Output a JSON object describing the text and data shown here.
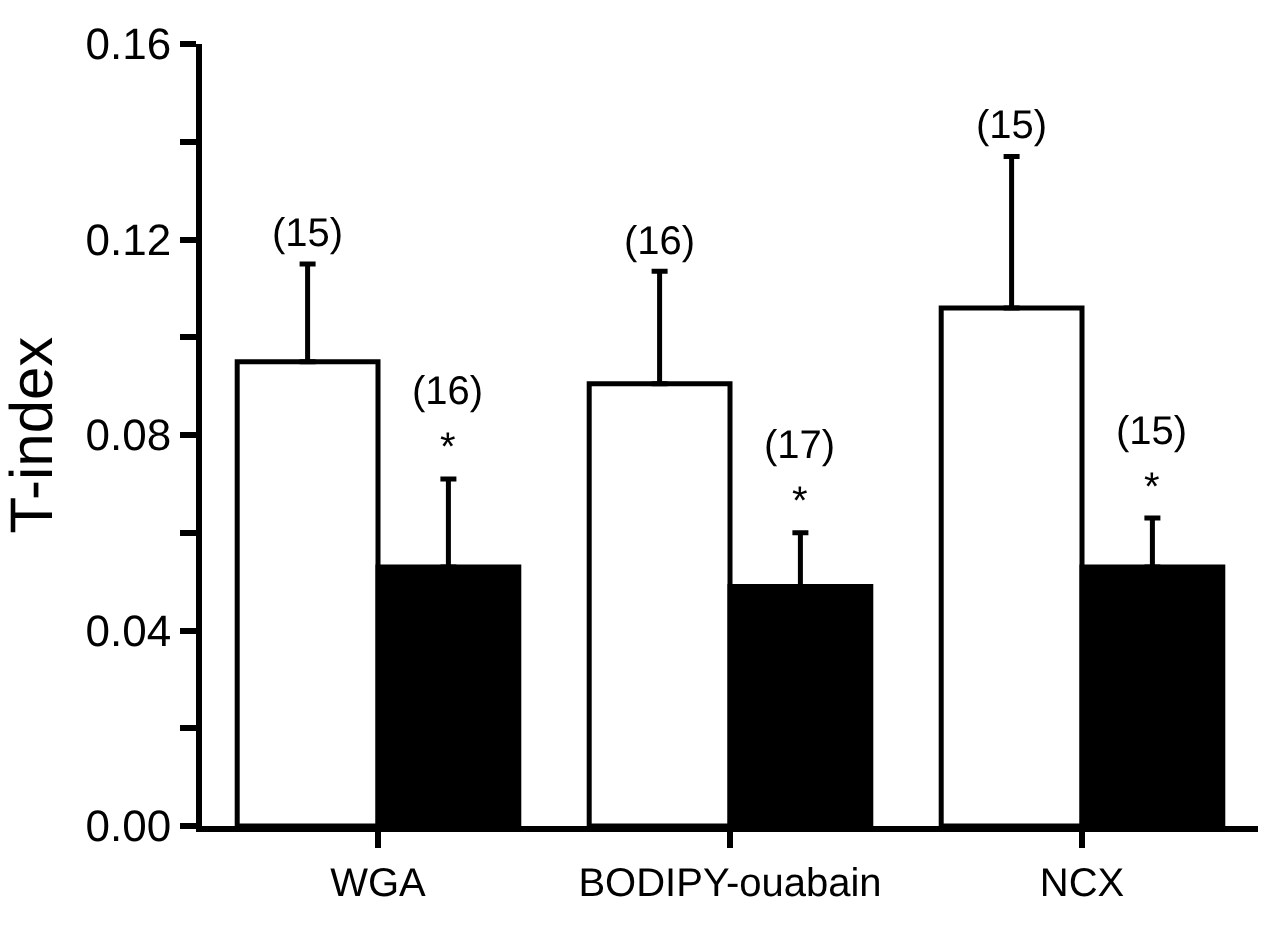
{
  "chart_data": {
    "type": "bar",
    "ylabel": "T-index",
    "categories": [
      "WGA",
      "BODIPY-ouabain",
      "NCX"
    ],
    "series": [
      {
        "color": "#ffffff",
        "values": [
          0.095,
          0.0905,
          0.106
        ],
        "errors": [
          [
            0.095,
            0.115
          ],
          [
            0.0905,
            0.1135
          ],
          [
            0.106,
            0.137
          ]
        ]
      },
      {
        "color": "#000000",
        "values": [
          0.053,
          0.049,
          0.053
        ],
        "errors": [
          [
            0.053,
            0.071
          ],
          [
            0.049,
            0.06
          ],
          [
            0.053,
            0.063
          ]
        ]
      }
    ],
    "ylim": [
      0,
      0.16
    ],
    "yticks": [
      {
        "value": 0,
        "label": "0.00"
      },
      {
        "value": 0.02,
        "label": null
      },
      0.04,
      {
        "value": 0.06,
        "label": null
      },
      0.08,
      {
        "value": 0.1,
        "label": null
      },
      0.12,
      {
        "value": 0.14,
        "label": null
      },
      0.16
    ],
    "annotations": [
      "(15)",
      "*",
      "(16)",
      "(16)",
      "*",
      "(17)",
      "(15)",
      "*",
      "(15)"
    ]
  }
}
